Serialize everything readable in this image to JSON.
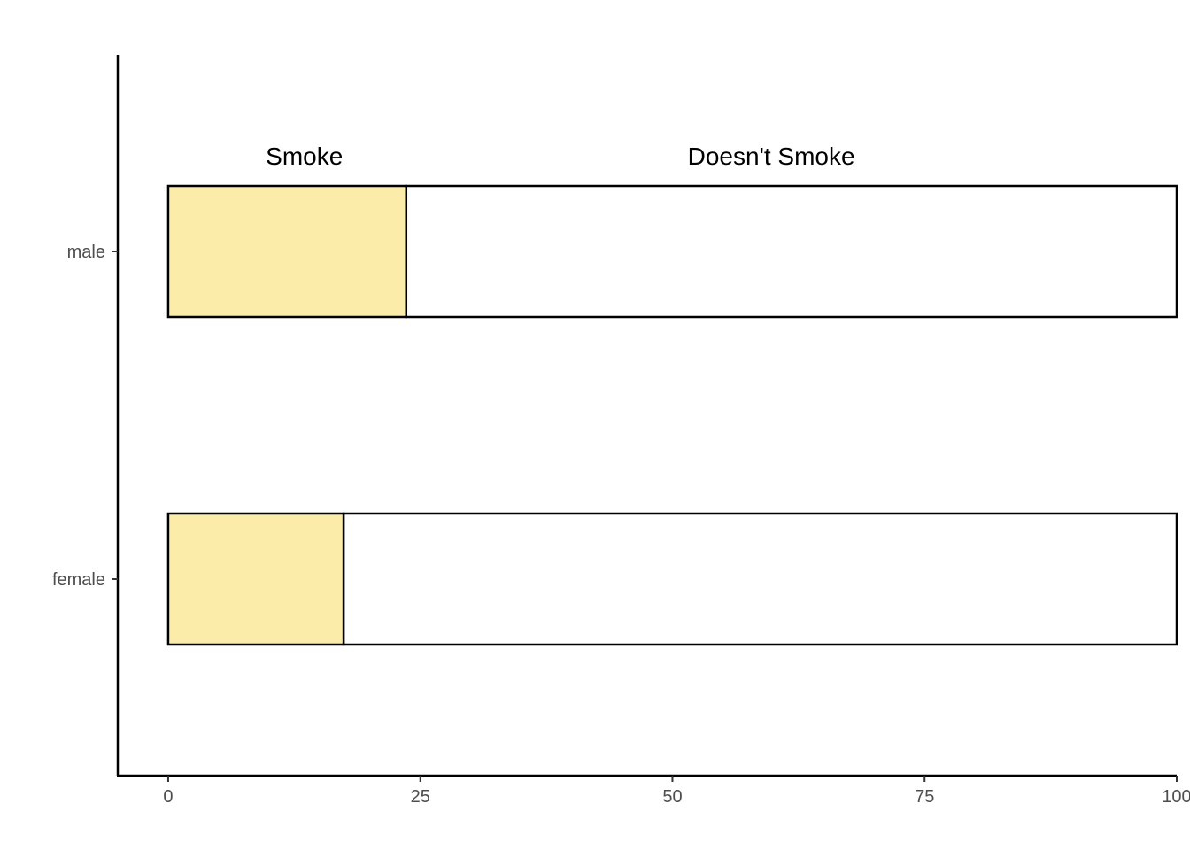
{
  "chart_data": {
    "type": "bar",
    "orientation": "horizontal",
    "stacked": true,
    "categories": [
      "male",
      "female"
    ],
    "series": [
      {
        "values": [
          23.6,
          17.4
        ],
        "color": "#fcecaa"
      },
      {
        "values": [
          76.4,
          82.6
        ],
        "color": "#ffffff"
      }
    ],
    "annotations": [
      {
        "text": "Smoke",
        "x": 13.5
      },
      {
        "text": "Doesn't Smoke",
        "x": 59.8
      }
    ],
    "xlim": [
      -5,
      100
    ],
    "ylim": [
      0.4,
      2.6
    ],
    "x_ticks": [
      0,
      25,
      50,
      75,
      100
    ],
    "xlabel": "",
    "ylabel": "",
    "title": "",
    "grid": false,
    "legend": "none",
    "bar_stroke": "#000000",
    "axis_color": "#000000"
  }
}
